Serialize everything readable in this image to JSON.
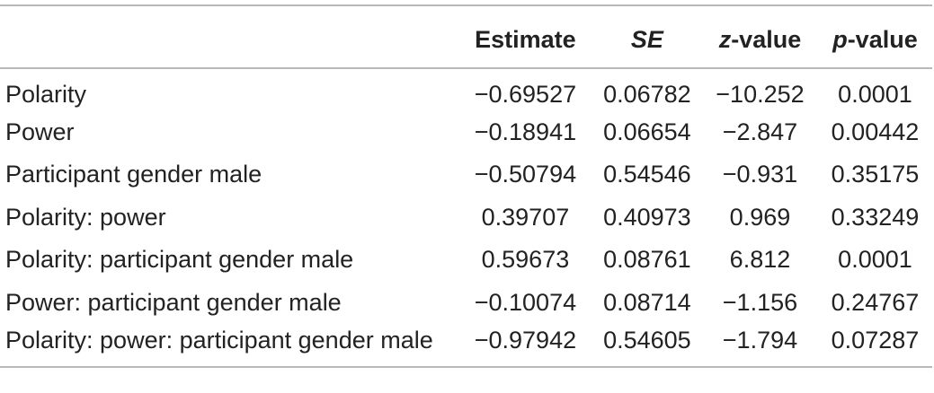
{
  "table": {
    "headers": {
      "label": "",
      "estimate": "Estimate",
      "se": "SE",
      "z_prefix": "z",
      "z_suffix": "-value",
      "p_prefix": "p",
      "p_suffix": "-value"
    },
    "rows": [
      {
        "label": "Polarity",
        "estimate": "−0.69527",
        "se": "0.06782",
        "z": "−10.252",
        "p": "0.0001"
      },
      {
        "label": "Power",
        "estimate": "−0.18941",
        "se": "0.06654",
        "z": "−2.847",
        "p": "0.00442"
      },
      {
        "label": "Participant gender male",
        "estimate": "−0.50794",
        "se": "0.54546",
        "z": "−0.931",
        "p": "0.35175"
      },
      {
        "label": "Polarity: power",
        "estimate": "0.39707",
        "se": "0.40973",
        "z": "0.969",
        "p": "0.33249"
      },
      {
        "label": "Polarity: participant gender male",
        "estimate": "0.59673",
        "se": "0.08761",
        "z": "6.812",
        "p": "0.0001"
      },
      {
        "label": "Power: participant gender male",
        "estimate": "−0.10074",
        "se": "0.08714",
        "z": "−1.156",
        "p": "0.24767"
      },
      {
        "label": "Polarity: power: participant gender male",
        "estimate": "−0.97942",
        "se": "0.54605",
        "z": "−1.794",
        "p": "0.07287"
      }
    ]
  }
}
